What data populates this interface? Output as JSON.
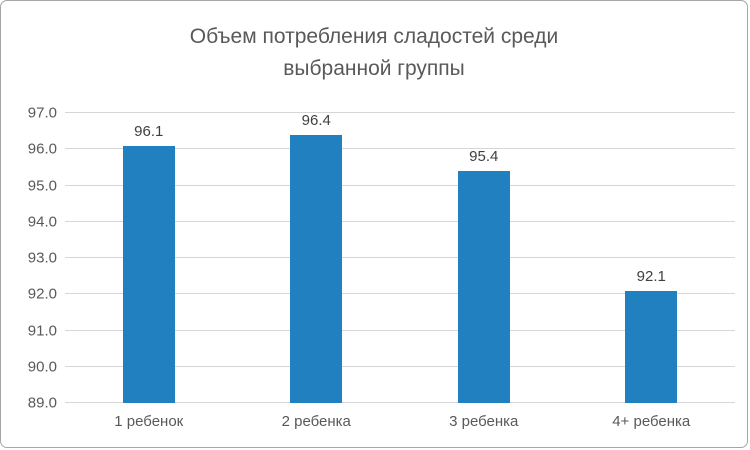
{
  "frame": {
    "background": "#ffffff",
    "border_color": "#a6a6a6"
  },
  "title_lines": [
    "Объем потребления сладостей среди",
    "выбранной группы"
  ],
  "chart_data": {
    "type": "bar",
    "title": "Объем потребления сладостей среди выбранной группы",
    "categories": [
      "1 ребенок",
      "2 ребенка",
      "3 ребенка",
      "4+ ребенка"
    ],
    "values": [
      96.1,
      96.4,
      95.4,
      92.1
    ],
    "data_labels": [
      "96.1",
      "96.4",
      "95.4",
      "92.1"
    ],
    "xlabel": "",
    "ylabel": "",
    "ylim": [
      89.0,
      97.0
    ],
    "yticks": [
      89.0,
      90.0,
      91.0,
      92.0,
      93.0,
      94.0,
      95.0,
      96.0,
      97.0
    ],
    "ytick_labels": [
      "89.0",
      "90.0",
      "91.0",
      "92.0",
      "93.0",
      "94.0",
      "95.0",
      "96.0",
      "97.0"
    ],
    "grid": true,
    "legend": "none",
    "colors": {
      "bar": "#2180bf",
      "grid": "#d6d6d6",
      "axis_text": "#595959",
      "value_label": "#404040",
      "title": "#595959"
    }
  }
}
